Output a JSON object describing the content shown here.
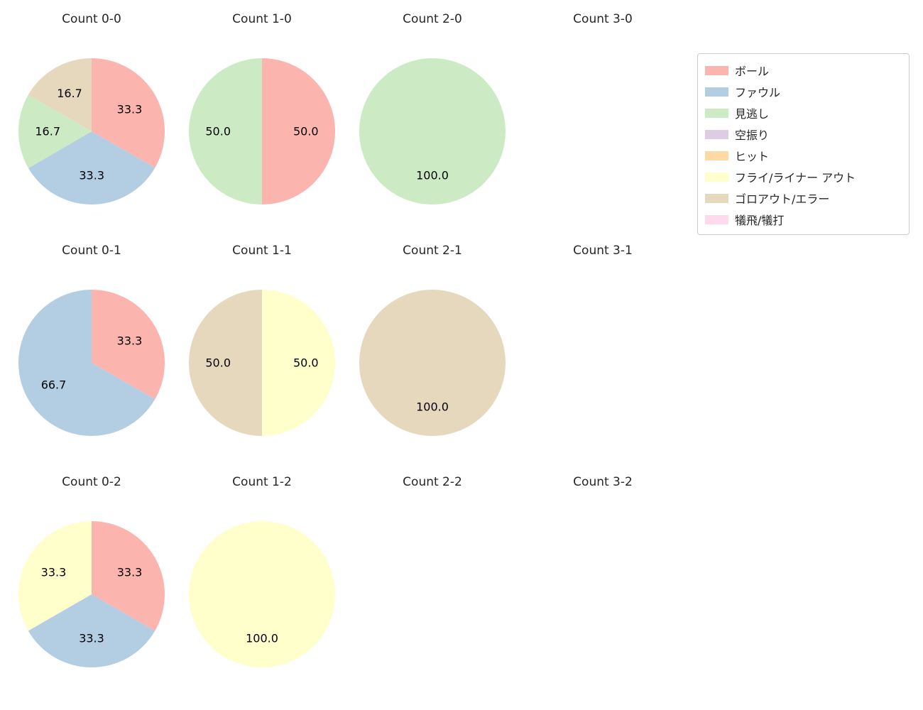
{
  "page": {
    "background": "#ffffff"
  },
  "legend": {
    "items": [
      {
        "label": "ボール",
        "color": "#fbb4ae"
      },
      {
        "label": "ファウル",
        "color": "#b3cde3"
      },
      {
        "label": "見逃し",
        "color": "#ccebc5"
      },
      {
        "label": "空振り",
        "color": "#decbe4"
      },
      {
        "label": "ヒット",
        "color": "#fed9a6"
      },
      {
        "label": "フライ/ライナー アウト",
        "color": "#ffffcc"
      },
      {
        "label": "ゴロアウト/エラー",
        "color": "#e5d8bd"
      },
      {
        "label": "犠飛/犠打",
        "color": "#fddaec"
      }
    ]
  },
  "chart_data": [
    {
      "type": "pie",
      "title": "Count 0-0",
      "start_angle": "top",
      "direction": "clockwise",
      "slices": [
        {
          "label": "ボール",
          "value": 33.3
        },
        {
          "label": "ファウル",
          "value": 33.3
        },
        {
          "label": "見逃し",
          "value": 16.7
        },
        {
          "label": "ゴロアウト/エラー",
          "value": 16.7
        }
      ]
    },
    {
      "type": "pie",
      "title": "Count 1-0",
      "start_angle": "top",
      "direction": "clockwise",
      "slices": [
        {
          "label": "ボール",
          "value": 50.0
        },
        {
          "label": "見逃し",
          "value": 50.0
        }
      ]
    },
    {
      "type": "pie",
      "title": "Count 2-0",
      "start_angle": "top",
      "direction": "clockwise",
      "slices": [
        {
          "label": "見逃し",
          "value": 100.0
        }
      ]
    },
    {
      "type": "pie",
      "title": "Count 3-0",
      "start_angle": "top",
      "direction": "clockwise",
      "slices": []
    },
    {
      "type": "pie",
      "title": "Count 0-1",
      "start_angle": "top",
      "direction": "clockwise",
      "slices": [
        {
          "label": "ボール",
          "value": 33.3
        },
        {
          "label": "ファウル",
          "value": 66.7
        }
      ]
    },
    {
      "type": "pie",
      "title": "Count 1-1",
      "start_angle": "top",
      "direction": "clockwise",
      "slices": [
        {
          "label": "フライ/ライナー アウト",
          "value": 50.0
        },
        {
          "label": "ゴロアウト/エラー",
          "value": 50.0
        }
      ]
    },
    {
      "type": "pie",
      "title": "Count 2-1",
      "start_angle": "top",
      "direction": "clockwise",
      "slices": [
        {
          "label": "ゴロアウト/エラー",
          "value": 100.0
        }
      ]
    },
    {
      "type": "pie",
      "title": "Count 3-1",
      "start_angle": "top",
      "direction": "clockwise",
      "slices": []
    },
    {
      "type": "pie",
      "title": "Count 0-2",
      "start_angle": "top",
      "direction": "clockwise",
      "slices": [
        {
          "label": "ボール",
          "value": 33.3
        },
        {
          "label": "ファウル",
          "value": 33.3
        },
        {
          "label": "フライ/ライナー アウト",
          "value": 33.3
        }
      ]
    },
    {
      "type": "pie",
      "title": "Count 1-2",
      "start_angle": "top",
      "direction": "clockwise",
      "slices": [
        {
          "label": "フライ/ライナー アウト",
          "value": 100.0
        }
      ]
    },
    {
      "type": "pie",
      "title": "Count 2-2",
      "start_angle": "top",
      "direction": "clockwise",
      "slices": []
    },
    {
      "type": "pie",
      "title": "Count 3-2",
      "start_angle": "top",
      "direction": "clockwise",
      "slices": []
    }
  ]
}
